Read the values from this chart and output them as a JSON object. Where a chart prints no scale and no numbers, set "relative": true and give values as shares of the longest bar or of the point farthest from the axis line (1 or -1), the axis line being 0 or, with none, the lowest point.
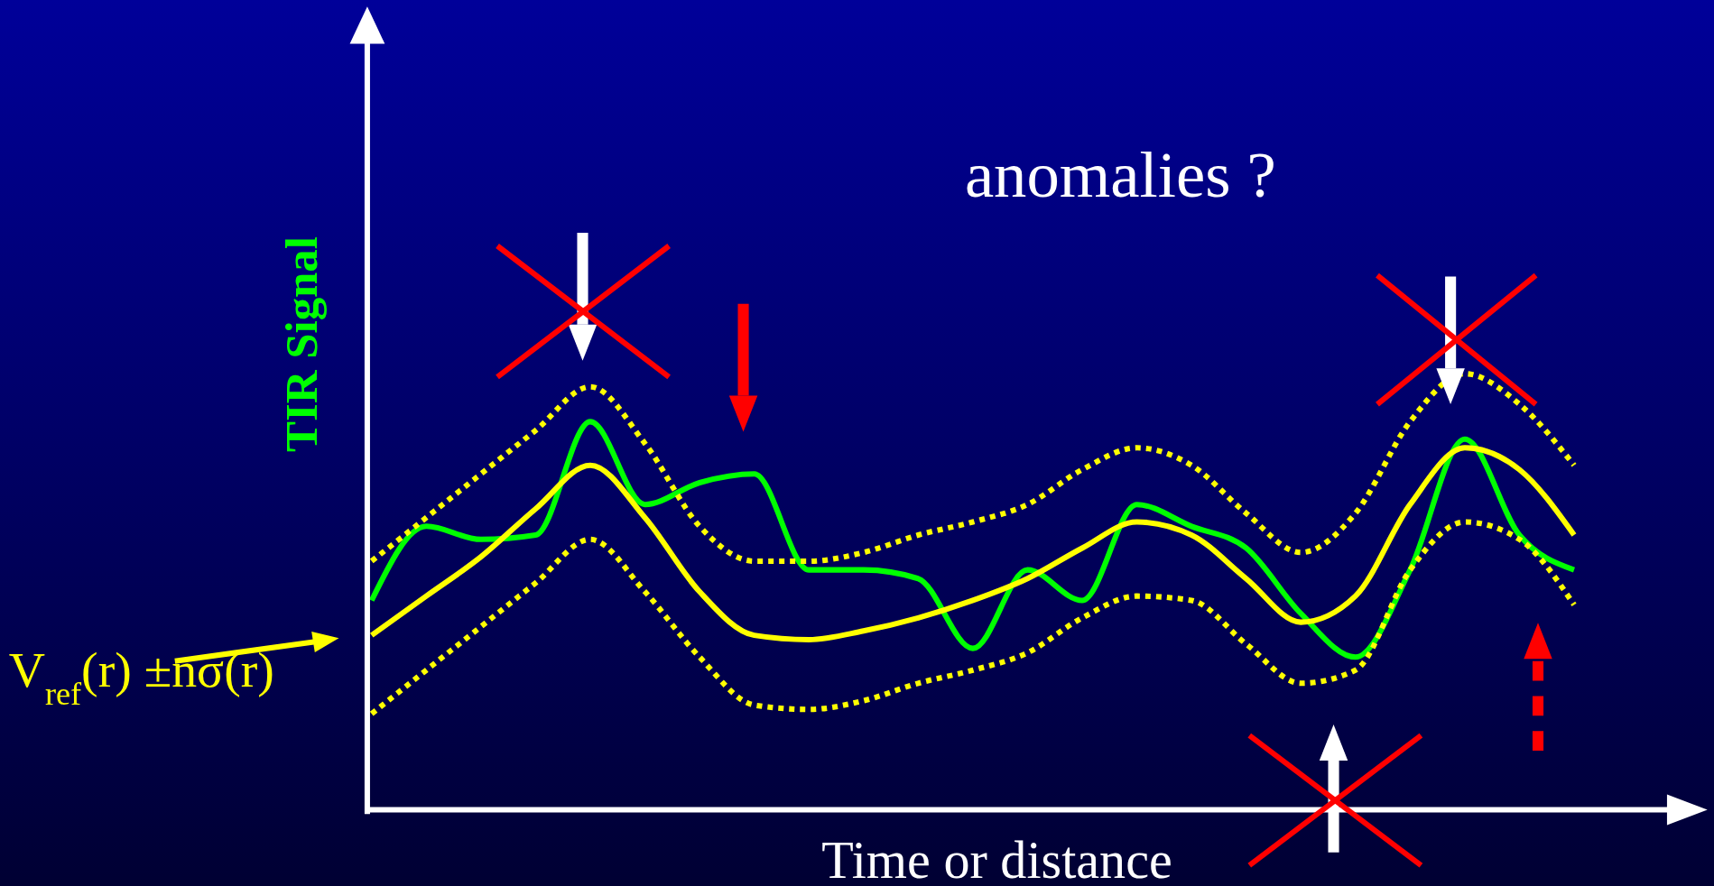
{
  "chart_data": {
    "type": "line",
    "relative": true,
    "xlabel": "Time or distance",
    "ylabel": "TIR Signal",
    "annotations": [
      "anomalies ?",
      "V$_{ref}$(r) ±nσ(r)"
    ],
    "categories": [
      null,
      null,
      null,
      null,
      null,
      null,
      null,
      null,
      null,
      null,
      null,
      null,
      null,
      null,
      null,
      null,
      null,
      null,
      null,
      null,
      null,
      null,
      null
    ],
    "series": [
      {
        "color": "#00ff00",
        "line_style": "solid",
        "values": [
          0.48,
          0.65,
          0.62,
          0.63,
          0.89,
          0.7,
          0.75,
          0.77,
          0.55,
          0.55,
          0.53,
          0.37,
          0.55,
          0.48,
          0.7,
          0.65,
          0.6,
          0.45,
          0.35,
          0.55,
          0.85,
          0.63,
          0.55
        ]
      },
      {
        "color": "#ffff00",
        "line_style": "dotted",
        "values": [
          0.57,
          0.67,
          0.77,
          0.87,
          0.97,
          0.84,
          0.65,
          0.57,
          0.57,
          0.59,
          0.63,
          0.66,
          0.7,
          0.78,
          0.83,
          0.79,
          0.68,
          0.59,
          0.68,
          0.89,
          1.0,
          0.93,
          0.79
        ]
      },
      {
        "color": "#ffff00",
        "line_style": "dotted",
        "values": [
          0.22,
          0.32,
          0.42,
          0.52,
          0.62,
          0.5,
          0.35,
          0.24,
          0.23,
          0.25,
          0.29,
          0.32,
          0.36,
          0.44,
          0.49,
          0.48,
          0.38,
          0.29,
          0.32,
          0.55,
          0.66,
          0.62,
          0.47
        ]
      },
      {
        "color": "#ffff00",
        "line_style": "solid",
        "values": [
          0.4,
          0.49,
          0.58,
          0.69,
          0.79,
          0.67,
          0.5,
          0.4,
          0.39,
          0.41,
          0.44,
          0.48,
          0.53,
          0.6,
          0.66,
          0.63,
          0.53,
          0.43,
          0.49,
          0.7,
          0.83,
          0.78,
          0.63
        ]
      }
    ]
  }
}
